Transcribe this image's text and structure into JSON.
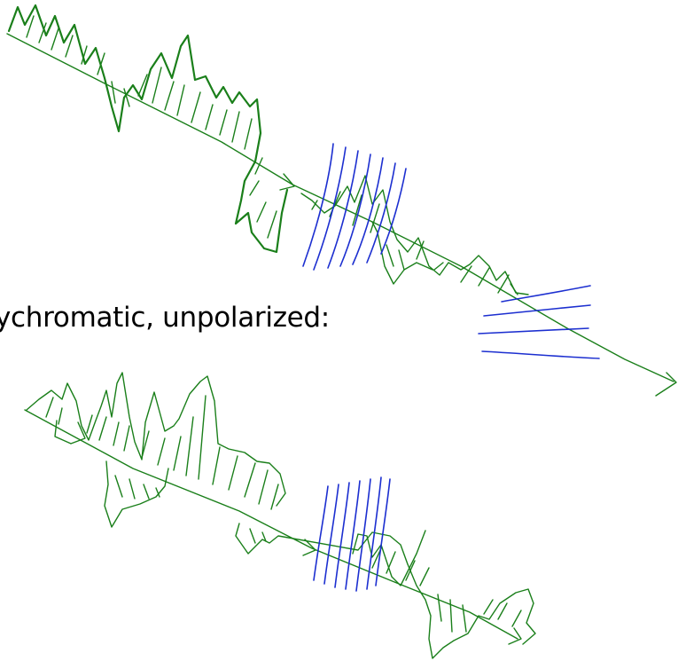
{
  "caption": "ychromatic, unpolarized:",
  "colors": {
    "wave_green": "#1a7f1a",
    "polarization_blue": "#1c2fd0",
    "text": "#000000",
    "background": "#ffffff"
  }
}
